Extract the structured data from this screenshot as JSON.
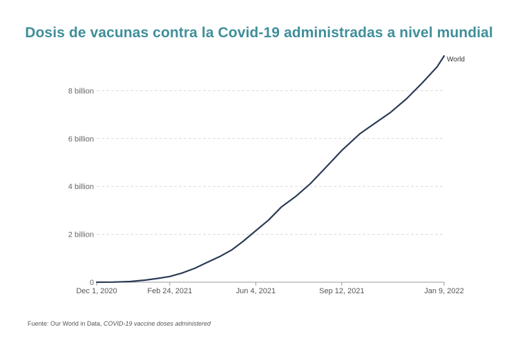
{
  "chart_data": {
    "type": "line",
    "title": "Dosis de vacunas contra la Covid-19 administradas a nivel mundial",
    "xlabel": "",
    "ylabel": "",
    "x_axis": {
      "type": "date",
      "range": [
        "2020-12-01",
        "2022-01-09"
      ],
      "ticks": [
        {
          "date": "2020-12-01",
          "label": "Dec 1, 2020"
        },
        {
          "date": "2021-02-24",
          "label": "Feb 24, 2021"
        },
        {
          "date": "2021-06-04",
          "label": "Jun 4, 2021"
        },
        {
          "date": "2021-09-12",
          "label": "Sep 12, 2021"
        },
        {
          "date": "2022-01-09",
          "label": "Jan 9, 2022"
        }
      ]
    },
    "y_axis": {
      "range": [
        0,
        10000000000
      ],
      "ticks": [
        {
          "value": 0,
          "label": "0"
        },
        {
          "value": 2000000000,
          "label": "2 billion"
        },
        {
          "value": 4000000000,
          "label": "4 billion"
        },
        {
          "value": 6000000000,
          "label": "6 billion"
        },
        {
          "value": 8000000000,
          "label": "8 billion"
        }
      ],
      "grid": true
    },
    "series": [
      {
        "name": "World",
        "color": "#2b3a55",
        "points": [
          {
            "x": "2020-12-01",
            "y": 0
          },
          {
            "x": "2020-12-20",
            "y": 5000000
          },
          {
            "x": "2021-01-09",
            "y": 30000000
          },
          {
            "x": "2021-01-27",
            "y": 90000000
          },
          {
            "x": "2021-02-12",
            "y": 170000000
          },
          {
            "x": "2021-02-24",
            "y": 240000000
          },
          {
            "x": "2021-03-10",
            "y": 380000000
          },
          {
            "x": "2021-03-25",
            "y": 580000000
          },
          {
            "x": "2021-04-08",
            "y": 820000000
          },
          {
            "x": "2021-04-23",
            "y": 1070000000
          },
          {
            "x": "2021-05-07",
            "y": 1350000000
          },
          {
            "x": "2021-05-20",
            "y": 1700000000
          },
          {
            "x": "2021-06-04",
            "y": 2150000000
          },
          {
            "x": "2021-06-19",
            "y": 2600000000
          },
          {
            "x": "2021-07-04",
            "y": 3150000000
          },
          {
            "x": "2021-07-21",
            "y": 3600000000
          },
          {
            "x": "2021-08-06",
            "y": 4100000000
          },
          {
            "x": "2021-08-22",
            "y": 4700000000
          },
          {
            "x": "2021-09-12",
            "y": 5500000000
          },
          {
            "x": "2021-10-03",
            "y": 6200000000
          },
          {
            "x": "2021-10-21",
            "y": 6650000000
          },
          {
            "x": "2021-11-08",
            "y": 7100000000
          },
          {
            "x": "2021-11-26",
            "y": 7650000000
          },
          {
            "x": "2021-12-14",
            "y": 8300000000
          },
          {
            "x": "2022-01-01",
            "y": 9000000000
          },
          {
            "x": "2022-01-09",
            "y": 9450000000
          }
        ]
      }
    ],
    "legend": "end-of-line label",
    "source": {
      "prefix": "Fuente: Our World in Data,",
      "dataset": "COVID-19 vaccine doses administered"
    }
  }
}
